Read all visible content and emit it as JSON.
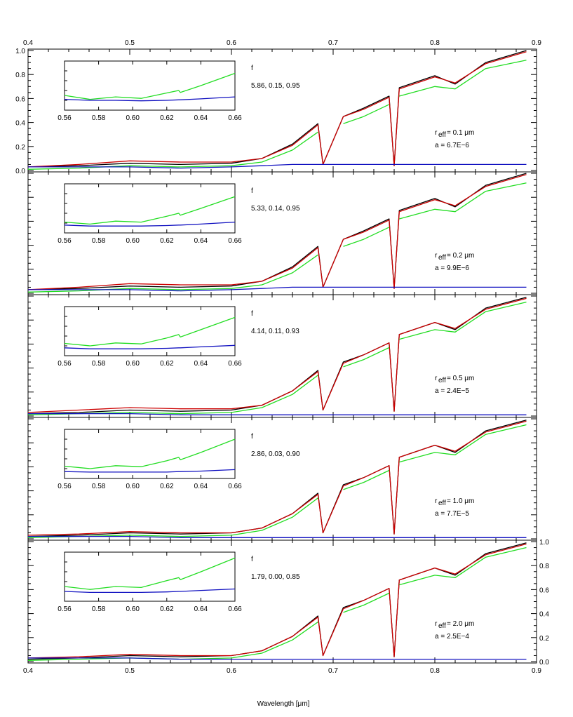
{
  "chart_data": {
    "type": "line",
    "title": "",
    "xlabel": "Wavelength [μm]",
    "ylabel": "",
    "xlim": [
      0.4,
      0.9
    ],
    "ylim": [
      0.0,
      1.0
    ],
    "x_ticks": [
      "0.4",
      "0.5",
      "0.6",
      "0.7",
      "0.8",
      "0.9"
    ],
    "y_ticks": [
      "0.0",
      "0.2",
      "0.4",
      "0.6",
      "0.8",
      "1.0"
    ],
    "grid": false,
    "series_colors": {
      "black": "#000000",
      "red": "#cc0000",
      "green": "#22dd22",
      "blue": "#1010c0"
    },
    "x": [
      0.4,
      0.45,
      0.5,
      0.55,
      0.6,
      0.63,
      0.66,
      0.685,
      0.69,
      0.71,
      0.73,
      0.755,
      0.76,
      0.765,
      0.8,
      0.82,
      0.85,
      0.89
    ],
    "panels": [
      {
        "reff_label": "r",
        "reff_sub": "eff",
        "reff_value": "= 0.1 μm",
        "a_text": "a = 6.7E−6",
        "fit_params_label": "f",
        "fit_params_value": "5.86, 0.15, 0.95",
        "series": [
          {
            "color": "black",
            "values": [
              0.03,
              0.04,
              0.06,
              0.05,
              0.06,
              0.1,
              0.22,
              0.39,
              0.05,
              0.45,
              0.52,
              0.62,
              0.04,
              0.69,
              0.79,
              0.72,
              0.9,
              1.0
            ]
          },
          {
            "color": "red",
            "values": [
              0.03,
              0.05,
              0.08,
              0.07,
              0.07,
              0.1,
              0.21,
              0.38,
              0.05,
              0.45,
              0.51,
              0.61,
              0.04,
              0.68,
              0.78,
              0.73,
              0.89,
              0.99
            ]
          },
          {
            "color": "green",
            "values": [
              0.01,
              0.02,
              0.04,
              0.03,
              0.04,
              0.07,
              0.17,
              0.32,
              null,
              0.39,
              0.45,
              0.55,
              null,
              0.62,
              0.7,
              0.68,
              0.85,
              0.92
            ]
          },
          {
            "color": "blue",
            "values": [
              0.03,
              0.03,
              0.03,
              0.02,
              0.03,
              0.04,
              0.05,
              0.05,
              0.05,
              0.05,
              0.05,
              0.05,
              0.05,
              0.05,
              0.05,
              0.05,
              0.05,
              0.05
            ]
          }
        ],
        "inset": {
          "xlim": [
            0.56,
            0.66
          ],
          "x_ticks": [
            "0.56",
            "0.58",
            "0.60",
            "0.62",
            "0.64",
            "0.66"
          ],
          "x": [
            0.56,
            0.575,
            0.59,
            0.605,
            0.62,
            0.627,
            0.628,
            0.64,
            0.66
          ],
          "green": [
            0.3,
            0.22,
            0.27,
            0.24,
            0.35,
            0.4,
            0.36,
            0.5,
            0.75
          ],
          "blue": [
            0.22,
            0.2,
            0.2,
            0.19,
            0.2,
            0.21,
            0.21,
            0.23,
            0.27
          ]
        }
      },
      {
        "reff_label": "r",
        "reff_sub": "eff",
        "reff_value": "= 0.2 μm",
        "a_text": "a = 9.9E−6",
        "fit_params_label": "f",
        "fit_params_value": "5.33, 0.14, 0.95",
        "series": [
          {
            "color": "black",
            "values": [
              0.03,
              0.04,
              0.06,
              0.05,
              0.06,
              0.1,
              0.22,
              0.39,
              0.05,
              0.45,
              0.52,
              0.62,
              0.04,
              0.69,
              0.79,
              0.72,
              0.9,
              1.0
            ]
          },
          {
            "color": "red",
            "values": [
              0.03,
              0.05,
              0.08,
              0.07,
              0.07,
              0.1,
              0.21,
              0.38,
              0.05,
              0.45,
              0.51,
              0.61,
              0.04,
              0.68,
              0.78,
              0.73,
              0.89,
              0.99
            ]
          },
          {
            "color": "green",
            "values": [
              0.01,
              0.02,
              0.04,
              0.03,
              0.04,
              0.07,
              0.17,
              0.32,
              null,
              0.39,
              0.45,
              0.55,
              null,
              0.62,
              0.7,
              0.68,
              0.85,
              0.92
            ]
          },
          {
            "color": "blue",
            "values": [
              0.03,
              0.03,
              0.03,
              0.02,
              0.03,
              0.04,
              0.05,
              0.05,
              0.05,
              0.05,
              0.05,
              0.05,
              0.05,
              0.05,
              0.05,
              0.05,
              0.05,
              0.05
            ]
          }
        ],
        "inset": {
          "xlim": [
            0.56,
            0.66
          ],
          "x_ticks": [
            "0.56",
            "0.58",
            "0.60",
            "0.62",
            "0.64",
            "0.66"
          ],
          "x": [
            0.56,
            0.575,
            0.59,
            0.605,
            0.62,
            0.627,
            0.628,
            0.64,
            0.66
          ],
          "green": [
            0.22,
            0.18,
            0.24,
            0.22,
            0.34,
            0.4,
            0.36,
            0.5,
            0.74
          ],
          "blue": [
            0.16,
            0.14,
            0.14,
            0.14,
            0.15,
            0.16,
            0.16,
            0.18,
            0.22
          ]
        }
      },
      {
        "reff_label": "r",
        "reff_sub": "eff",
        "reff_value": "= 0.5 μm",
        "a_text": "a = 2.4E−5",
        "fit_params_label": "f",
        "fit_params_value": "4.14, 0.11, 0.93",
        "series": [
          {
            "color": "black",
            "values": [
              0.02,
              0.03,
              0.05,
              0.04,
              0.05,
              0.09,
              0.21,
              0.38,
              0.05,
              0.45,
              0.51,
              0.61,
              0.04,
              0.68,
              0.78,
              0.72,
              0.9,
              0.99
            ]
          },
          {
            "color": "red",
            "values": [
              0.03,
              0.05,
              0.07,
              0.06,
              0.06,
              0.09,
              0.21,
              0.37,
              0.05,
              0.44,
              0.51,
              0.61,
              0.04,
              0.68,
              0.78,
              0.73,
              0.89,
              0.98
            ]
          },
          {
            "color": "green",
            "values": [
              0.01,
              0.02,
              0.03,
              0.02,
              0.03,
              0.07,
              0.18,
              0.34,
              null,
              0.41,
              0.47,
              0.57,
              null,
              0.64,
              0.72,
              0.7,
              0.87,
              0.95
            ]
          },
          {
            "color": "blue",
            "values": [
              0.02,
              0.02,
              0.02,
              0.01,
              0.01,
              0.01,
              0.01,
              0.01,
              0.01,
              0.01,
              0.01,
              0.01,
              0.01,
              0.01,
              0.01,
              0.01,
              0.01,
              0.01
            ]
          }
        ],
        "inset": {
          "xlim": [
            0.56,
            0.66
          ],
          "x_ticks": [
            "0.56",
            "0.58",
            "0.60",
            "0.62",
            "0.64",
            "0.66"
          ],
          "x": [
            0.56,
            0.575,
            0.59,
            0.605,
            0.62,
            0.627,
            0.628,
            0.64,
            0.66
          ],
          "green": [
            0.25,
            0.2,
            0.26,
            0.24,
            0.36,
            0.43,
            0.38,
            0.53,
            0.78
          ],
          "blue": [
            0.16,
            0.14,
            0.14,
            0.14,
            0.15,
            0.16,
            0.16,
            0.18,
            0.21
          ]
        }
      },
      {
        "reff_label": "r",
        "reff_sub": "eff",
        "reff_value": "= 1.0 μm",
        "a_text": "a = 7.7E−5",
        "fit_params_label": "f",
        "fit_params_value": "2.86, 0.03, 0.90",
        "series": [
          {
            "color": "black",
            "values": [
              0.02,
              0.03,
              0.05,
              0.04,
              0.05,
              0.09,
              0.21,
              0.38,
              0.05,
              0.45,
              0.51,
              0.61,
              0.04,
              0.68,
              0.78,
              0.72,
              0.9,
              0.99
            ]
          },
          {
            "color": "red",
            "values": [
              0.03,
              0.04,
              0.06,
              0.05,
              0.05,
              0.09,
              0.21,
              0.37,
              0.05,
              0.44,
              0.51,
              0.61,
              0.04,
              0.68,
              0.78,
              0.73,
              0.89,
              0.98
            ]
          },
          {
            "color": "green",
            "values": [
              0.01,
              0.02,
              0.03,
              0.02,
              0.03,
              0.07,
              0.18,
              0.34,
              null,
              0.41,
              0.47,
              0.57,
              null,
              0.64,
              0.72,
              0.7,
              0.87,
              0.95
            ]
          },
          {
            "color": "blue",
            "values": [
              0.02,
              0.02,
              0.02,
              0.01,
              0.01,
              0.01,
              0.01,
              0.01,
              0.01,
              0.01,
              0.01,
              0.01,
              0.01,
              0.01,
              0.01,
              0.01,
              0.01,
              0.01
            ]
          }
        ],
        "inset": {
          "xlim": [
            0.56,
            0.66
          ],
          "x_ticks": [
            "0.56",
            "0.58",
            "0.60",
            "0.62",
            "0.64",
            "0.66"
          ],
          "x": [
            0.56,
            0.575,
            0.59,
            0.605,
            0.62,
            0.627,
            0.628,
            0.64,
            0.66
          ],
          "green": [
            0.25,
            0.2,
            0.26,
            0.24,
            0.36,
            0.43,
            0.38,
            0.53,
            0.8
          ],
          "blue": [
            0.14,
            0.13,
            0.13,
            0.13,
            0.13,
            0.14,
            0.14,
            0.15,
            0.18
          ]
        }
      },
      {
        "reff_label": "r",
        "reff_sub": "eff",
        "reff_value": "= 2.0 μm",
        "a_text": "a = 2.5E−4",
        "fit_params_label": "f",
        "fit_params_value": "1.79, 0.00, 0.85",
        "series": [
          {
            "color": "black",
            "values": [
              0.02,
              0.03,
              0.05,
              0.04,
              0.05,
              0.09,
              0.21,
              0.38,
              0.05,
              0.45,
              0.51,
              0.61,
              0.04,
              0.68,
              0.78,
              0.72,
              0.9,
              0.99
            ]
          },
          {
            "color": "red",
            "values": [
              0.03,
              0.04,
              0.06,
              0.05,
              0.05,
              0.09,
              0.21,
              0.37,
              0.05,
              0.44,
              0.51,
              0.61,
              0.04,
              0.68,
              0.78,
              0.73,
              0.89,
              0.98
            ]
          },
          {
            "color": "green",
            "values": [
              0.01,
              0.02,
              0.03,
              0.02,
              0.03,
              0.07,
              0.18,
              0.33,
              null,
              0.41,
              0.47,
              0.57,
              null,
              0.64,
              0.72,
              0.7,
              0.87,
              0.95
            ]
          },
          {
            "color": "blue",
            "values": [
              0.03,
              0.03,
              0.03,
              0.02,
              0.02,
              0.02,
              0.02,
              0.02,
              0.02,
              0.02,
              0.02,
              0.02,
              0.02,
              0.02,
              0.02,
              0.02,
              0.02,
              0.02
            ]
          }
        ],
        "inset": {
          "xlim": [
            0.56,
            0.66
          ],
          "x_ticks": [
            "0.56",
            "0.58",
            "0.60",
            "0.62",
            "0.64",
            "0.66"
          ],
          "x": [
            0.56,
            0.575,
            0.59,
            0.605,
            0.62,
            0.627,
            0.628,
            0.64,
            0.66
          ],
          "green": [
            0.3,
            0.24,
            0.3,
            0.28,
            0.42,
            0.48,
            0.44,
            0.6,
            0.88
          ],
          "blue": [
            0.2,
            0.18,
            0.18,
            0.18,
            0.19,
            0.2,
            0.2,
            0.22,
            0.25
          ]
        }
      }
    ]
  }
}
